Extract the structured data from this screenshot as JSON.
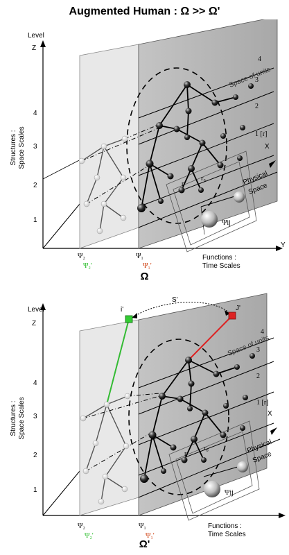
{
  "title": "Augmented Human : Ω >> Ω'",
  "axes": {
    "level_label": "Level",
    "z_label": "Z",
    "y_label": "Y",
    "x_label": "X",
    "structures_line1": "Structures :",
    "structures_line2": "Space Scales",
    "functions_line1": "Functions :",
    "functions_line2": "Time Scales",
    "ticks": [
      "1",
      "2",
      "3",
      "4"
    ]
  },
  "planes": {
    "space_of_units": "Space  of units",
    "physical_space_line1": "Physical",
    "physical_space_line2": "Space",
    "unit_levels": [
      "1 [r]",
      "2",
      "3",
      "4"
    ]
  },
  "psi_labels": {
    "psi2": "Ψ₂",
    "psi1": "Ψ₁",
    "psi2_prime": "Ψ₂'",
    "psi1_prime": "Ψ₁'",
    "psi_ij": "Ψij",
    "r": "r",
    "r0": "r₀"
  },
  "top_panel": {
    "caption": "Ω"
  },
  "bottom_panel": {
    "caption": "Ω'",
    "i_prime": "i'",
    "j_prime": "J'",
    "s_prime": "S'"
  },
  "colors": {
    "psi2_prime": "#22bb22",
    "psi1_prime": "#cc3300",
    "green_link": "#33bb33",
    "red_link": "#dd2222",
    "plane_left": "#e8e8e8",
    "plane_right": "#b4b4b4"
  }
}
